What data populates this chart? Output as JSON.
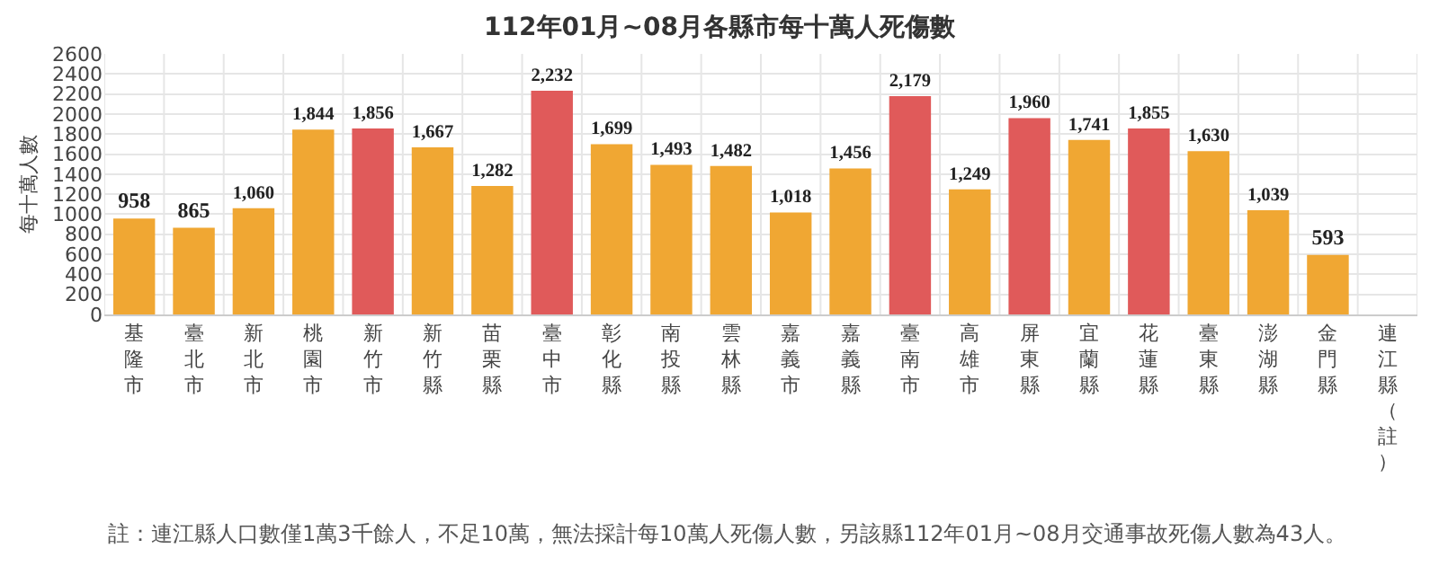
{
  "chart_data": {
    "type": "bar",
    "title": "112年01月~08月各縣市每十萬人死傷數",
    "ylabel": "每十萬人數",
    "categories": [
      "基隆市",
      "臺北市",
      "新北市",
      "桃園市",
      "新竹市",
      "新竹縣",
      "苗栗縣",
      "臺中市",
      "彰化縣",
      "南投縣",
      "雲林縣",
      "嘉義市",
      "嘉義縣",
      "臺南市",
      "高雄市",
      "屏東縣",
      "宜蘭縣",
      "花蓮縣",
      "臺東縣",
      "澎湖縣",
      "金門縣",
      "連江縣（註）"
    ],
    "values": [
      958,
      865,
      1060,
      1844,
      1856,
      1667,
      1282,
      2232,
      1699,
      1493,
      1482,
      1018,
      1456,
      2179,
      1249,
      1960,
      1741,
      1855,
      1630,
      1039,
      593,
      null
    ],
    "colors": [
      "#f0a733",
      "#f0a733",
      "#f0a733",
      "#f0a733",
      "#e05a5a",
      "#f0a733",
      "#f0a733",
      "#e05a5a",
      "#f0a733",
      "#f0a733",
      "#f0a733",
      "#f0a733",
      "#f0a733",
      "#e05a5a",
      "#f0a733",
      "#e05a5a",
      "#f0a733",
      "#e05a5a",
      "#f0a733",
      "#f0a733",
      "#f0a733",
      "#f0a733"
    ],
    "ylim": [
      0,
      2600
    ],
    "yticks": [
      0,
      200,
      400,
      600,
      800,
      1000,
      1200,
      1400,
      1600,
      1800,
      2000,
      2200,
      2400,
      2600
    ],
    "value_labels": [
      "958",
      "865",
      "1,060",
      "1,844",
      "1,856",
      "1,667",
      "1,282",
      "2,232",
      "1,699",
      "1,493",
      "1,482",
      "1,018",
      "1,456",
      "2,179",
      "1,249",
      "1,960",
      "1,741",
      "1,855",
      "1,630",
      "1,039",
      "593",
      null
    ],
    "grid": true,
    "annotations": [
      "註：連江縣人口數僅1萬3千餘人，不足10萬，無法採計每10萬人死傷人數，另該縣112年01月~08月交通事故死傷人數為43人。"
    ]
  }
}
